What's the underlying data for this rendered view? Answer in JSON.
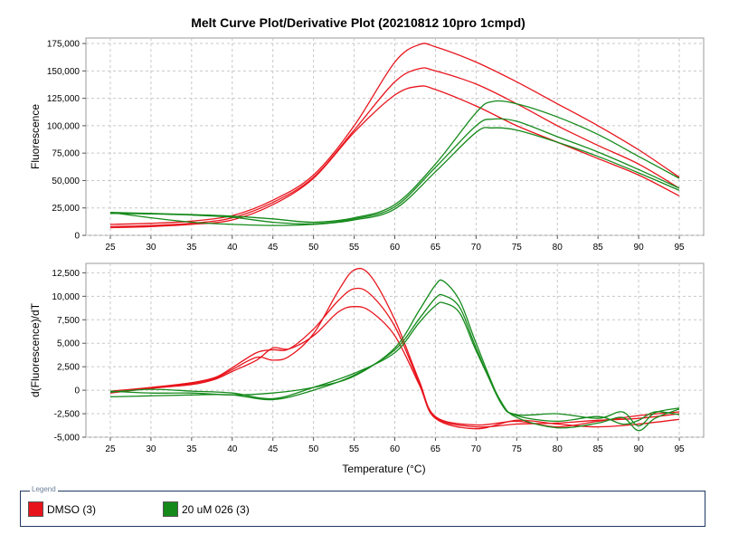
{
  "title": "Melt Curve Plot/Derivative Plot (20210812 10pro 1cmpd)",
  "colors": {
    "dmso": "#e8141c",
    "cmpd": "#158a1b"
  },
  "legend": {
    "title": "Legend",
    "items": [
      {
        "label": "DMSO (3)",
        "color": "#e8141c"
      },
      {
        "label": "20 uM 026 (3)",
        "color": "#158a1b"
      }
    ]
  },
  "chart_data": [
    {
      "type": "line",
      "title": "Melt Curve Plot/Derivative Plot (20210812 10pro 1cmpd)",
      "xlabel": "",
      "ylabel": "Fluorescence",
      "xlim": [
        22,
        98
      ],
      "ylim": [
        0,
        180000
      ],
      "xticks": [
        25,
        30,
        35,
        40,
        45,
        50,
        55,
        60,
        65,
        70,
        75,
        80,
        85,
        90,
        95
      ],
      "yticks": [
        0,
        25000,
        50000,
        75000,
        100000,
        125000,
        150000,
        175000
      ],
      "ytick_labels": [
        "0",
        "25,000",
        "50,000",
        "75,000",
        "100,000",
        "125,000",
        "150,000",
        "175,000"
      ],
      "grid": true,
      "series": [
        {
          "name": "DMSO (3)",
          "color": "#e8141c",
          "x": [
            25,
            30,
            35,
            40,
            45,
            50,
            55,
            60,
            63,
            65,
            70,
            75,
            80,
            85,
            90,
            95
          ],
          "y": [
            10000,
            11000,
            13000,
            18000,
            32000,
            55000,
            100000,
            158000,
            174000,
            172000,
            158000,
            140000,
            120000,
            100000,
            78000,
            53000
          ]
        },
        {
          "name": "DMSO (3)",
          "color": "#e8141c",
          "x": [
            25,
            30,
            35,
            40,
            45,
            50,
            55,
            60,
            63,
            65,
            70,
            75,
            80,
            85,
            90,
            95
          ],
          "y": [
            8000,
            9000,
            11000,
            16000,
            30000,
            53000,
            96000,
            140000,
            152000,
            150000,
            138000,
            120000,
            100000,
            82000,
            65000,
            43000
          ]
        },
        {
          "name": "DMSO (3)",
          "color": "#e8141c",
          "x": [
            25,
            30,
            35,
            40,
            45,
            50,
            55,
            60,
            63,
            65,
            70,
            75,
            80,
            85,
            90,
            95
          ],
          "y": [
            7000,
            8000,
            10000,
            14000,
            28000,
            52000,
            94000,
            128000,
            136000,
            133000,
            118000,
            100000,
            85000,
            70000,
            55000,
            36000
          ]
        },
        {
          "name": "20 uM 026 (3)",
          "color": "#158a1b",
          "x": [
            25,
            30,
            35,
            40,
            45,
            50,
            55,
            60,
            65,
            70,
            72,
            75,
            80,
            85,
            90,
            95
          ],
          "y": [
            21000,
            20000,
            19000,
            17500,
            15000,
            12000,
            16000,
            28000,
            65000,
            112000,
            122000,
            120000,
            108000,
            92000,
            72000,
            52000
          ]
        },
        {
          "name": "20 uM 026 (3)",
          "color": "#158a1b",
          "x": [
            25,
            30,
            35,
            40,
            45,
            50,
            55,
            60,
            65,
            70,
            72,
            75,
            80,
            85,
            90,
            95
          ],
          "y": [
            20000,
            19500,
            18500,
            16500,
            12000,
            10500,
            15000,
            26000,
            62000,
            100000,
            106000,
            104000,
            90000,
            76000,
            60000,
            43000
          ]
        },
        {
          "name": "20 uM 026 (3)",
          "color": "#158a1b",
          "x": [
            25,
            30,
            35,
            40,
            45,
            50,
            55,
            60,
            65,
            70,
            72,
            75,
            80,
            85,
            90,
            95
          ],
          "y": [
            21000,
            16000,
            12000,
            10000,
            9000,
            10000,
            14000,
            24000,
            58000,
            94000,
            98000,
            96000,
            85000,
            72000,
            57000,
            41000
          ]
        }
      ]
    },
    {
      "type": "line",
      "title": "",
      "xlabel": "Temperature (°C)",
      "ylabel": "d(Fluorescence)/dT",
      "xlim": [
        22,
        98
      ],
      "ylim": [
        -5000,
        13500
      ],
      "xticks": [
        25,
        30,
        35,
        40,
        45,
        50,
        55,
        60,
        65,
        70,
        75,
        80,
        85,
        90,
        95
      ],
      "yticks": [
        -5000,
        -2500,
        0,
        2500,
        5000,
        7500,
        10000,
        12500
      ],
      "ytick_labels": [
        "-5,000",
        "-2,500",
        "0",
        "2,500",
        "5,000",
        "7,500",
        "10,000",
        "12,500"
      ],
      "grid": true,
      "series": [
        {
          "name": "DMSO (3)",
          "color": "#e8141c",
          "x": [
            25,
            30,
            35,
            38,
            40,
            43,
            45,
            47,
            50,
            53,
            55,
            57,
            60,
            63,
            65,
            70,
            75,
            80,
            85,
            90,
            95
          ],
          "y": [
            -200,
            200,
            700,
            1300,
            2200,
            3500,
            3200,
            3600,
            6000,
            10500,
            12800,
            12200,
            7500,
            1000,
            -2800,
            -3700,
            -3300,
            -3900,
            -3300,
            -2700,
            -2300
          ]
        },
        {
          "name": "DMSO (3)",
          "color": "#e8141c",
          "x": [
            25,
            30,
            35,
            38,
            40,
            43,
            45,
            47,
            50,
            53,
            55,
            57,
            60,
            63,
            65,
            70,
            75,
            80,
            85,
            90,
            95
          ],
          "y": [
            -100,
            300,
            800,
            1400,
            2400,
            4000,
            4300,
            4400,
            6500,
            9500,
            10800,
            10200,
            6800,
            800,
            -2900,
            -3900,
            -3600,
            -3500,
            -3200,
            -3000,
            -2500
          ]
        },
        {
          "name": "DMSO (3)",
          "color": "#e8141c",
          "x": [
            25,
            30,
            35,
            38,
            40,
            43,
            45,
            47,
            50,
            53,
            55,
            57,
            60,
            63,
            65,
            70,
            75,
            80,
            85,
            90,
            95
          ],
          "y": [
            -300,
            200,
            600,
            1200,
            2000,
            3200,
            4500,
            4400,
            5800,
            8300,
            8900,
            8400,
            5800,
            600,
            -3000,
            -4100,
            -3200,
            -3600,
            -3900,
            -3600,
            -3100
          ]
        },
        {
          "name": "20 uM 026 (3)",
          "color": "#158a1b",
          "x": [
            25,
            30,
            35,
            40,
            45,
            50,
            55,
            60,
            63,
            65,
            66,
            68,
            70,
            73,
            75,
            80,
            85,
            88,
            90,
            92,
            95
          ],
          "y": [
            -100,
            -300,
            -300,
            -500,
            -300,
            300,
            1500,
            4500,
            8500,
            11200,
            11600,
            9500,
            5000,
            -1200,
            -2600,
            -2500,
            -3000,
            -2300,
            -3800,
            -2400,
            -1900
          ]
        },
        {
          "name": "20 uM 026 (3)",
          "color": "#158a1b",
          "x": [
            25,
            30,
            35,
            40,
            45,
            50,
            55,
            60,
            63,
            65,
            66,
            68,
            70,
            73,
            75,
            80,
            85,
            88,
            90,
            92,
            95
          ],
          "y": [
            -700,
            -600,
            -500,
            -500,
            -1000,
            0,
            1600,
            4300,
            7600,
            9800,
            10100,
            8800,
            4500,
            -1300,
            -2700,
            -3300,
            -2800,
            -3600,
            -3200,
            -2300,
            -2600
          ]
        },
        {
          "name": "20 uM 026 (3)",
          "color": "#158a1b",
          "x": [
            25,
            30,
            35,
            40,
            45,
            50,
            55,
            60,
            63,
            65,
            66,
            68,
            70,
            73,
            75,
            80,
            85,
            88,
            90,
            92,
            95
          ],
          "y": [
            -200,
            100,
            -100,
            -300,
            -900,
            300,
            1800,
            4000,
            7200,
            9000,
            9300,
            8200,
            4200,
            -1100,
            -2900,
            -4000,
            -3500,
            -2900,
            -4300,
            -3000,
            -2000
          ]
        }
      ]
    }
  ]
}
